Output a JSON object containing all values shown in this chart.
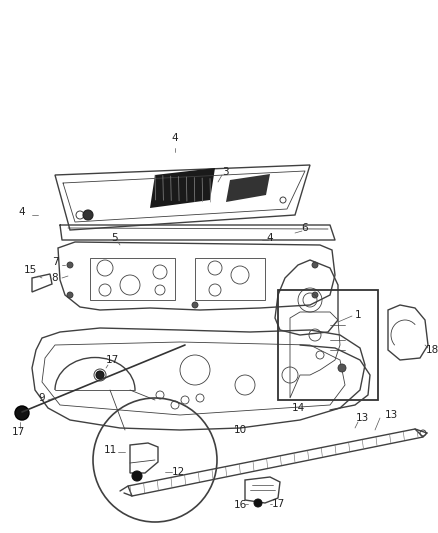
{
  "background_color": "#ffffff",
  "fig_width": 4.38,
  "fig_height": 5.33,
  "dpi": 100,
  "line_color": "#404040",
  "label_color": "#222222",
  "label_fontsize": 7.5,
  "lw_main": 1.0,
  "lw_thin": 0.6,
  "lw_heavy": 1.4
}
